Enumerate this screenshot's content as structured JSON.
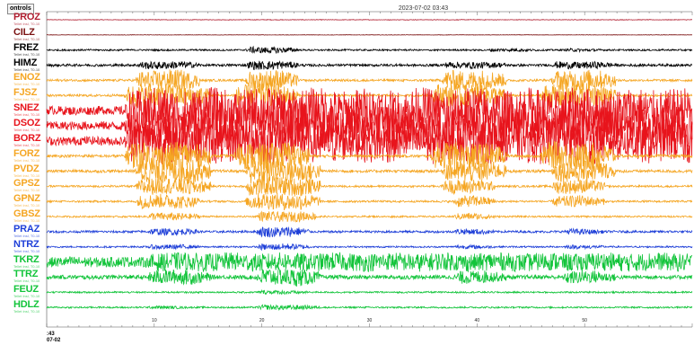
{
  "controls_label": "ontrols",
  "timestamp": "2023-07-02 03:43",
  "x_start_label": ":43",
  "x_start_date": "07-02",
  "colors": {
    "PROZ": "#b01c2e",
    "CILZ": "#7a1010",
    "FREZ": "#000000",
    "HIMZ": "#000000",
    "orange": "#f5a623",
    "red": "#e8141c",
    "blue": "#1e3fd8",
    "green": "#12c43a"
  },
  "chart_data": {
    "type": "line",
    "title": "2023-07-02 03:43",
    "x_ticks": [
      "10",
      "20",
      "30",
      "40",
      "50"
    ],
    "xlim": [
      1,
      60
    ],
    "stations": [
      {
        "name": "PROZ",
        "sub": "Tellet Insl, T0-10",
        "color": "#b01c2e",
        "amp": 0.8,
        "base": 0.4,
        "bursts": []
      },
      {
        "name": "CILZ",
        "sub": "Tellet Insl, T0-10",
        "color": "#7a1010",
        "amp": 0.5,
        "base": 0.5,
        "bursts": []
      },
      {
        "name": "FREZ",
        "sub": "Tellet Insl, T0-10",
        "color": "#000000",
        "amp": 2.5,
        "base": 0.4,
        "bursts": [
          [
            19,
            24,
            1.6
          ],
          [
            41,
            46,
            0.8
          ],
          [
            48,
            52,
            0.8
          ]
        ]
      },
      {
        "name": "HIMZ",
        "sub": "Tellet Insl, T0-10",
        "color": "#000000",
        "amp": 3.0,
        "base": 0.5,
        "bursts": [
          [
            9,
            15,
            1.6
          ],
          [
            19,
            24,
            1.8
          ],
          [
            37,
            43,
            1.4
          ],
          [
            47,
            53,
            1.5
          ]
        ]
      },
      {
        "name": "ENOZ",
        "sub": "Tellet Insl, T0-10",
        "color": "#f5a623",
        "amp": 4.0,
        "base": 0.35,
        "bursts": [
          [
            9,
            15,
            3.2
          ],
          [
            19,
            24,
            3.2
          ],
          [
            37,
            43,
            3.2
          ],
          [
            47,
            53,
            3.2
          ]
        ]
      },
      {
        "name": "FJSZ",
        "sub": "Tellet Insl, T0-10",
        "color": "#f5a623",
        "amp": 4.0,
        "base": 0.35,
        "bursts": [
          [
            8,
            16,
            3.6
          ],
          [
            18,
            24,
            3.6
          ],
          [
            36,
            43,
            3.6
          ],
          [
            46,
            53,
            3.6
          ]
        ]
      },
      {
        "name": "SNEZ",
        "sub": "Tellet Insl, T0-10",
        "color": "#e8141c",
        "amp": 9.0,
        "base": 0.6,
        "bursts": [
          [
            8,
            62,
            3.0
          ]
        ]
      },
      {
        "name": "DSOZ",
        "sub": "Tellet Insl, T0-10",
        "color": "#e8141c",
        "amp": 9.0,
        "base": 0.6,
        "bursts": [
          [
            8,
            62,
            3.0
          ]
        ]
      },
      {
        "name": "BORZ",
        "sub": "Tellet Insl, T0-10",
        "color": "#e8141c",
        "amp": 9.0,
        "base": 0.6,
        "bursts": [
          [
            8,
            62,
            3.0
          ]
        ]
      },
      {
        "name": "FORZ",
        "sub": "Tellet Insl, T0-10",
        "color": "#f5a623",
        "amp": 5.0,
        "base": 0.35,
        "bursts": [
          [
            8,
            16,
            3.4
          ],
          [
            18,
            25,
            3.4
          ],
          [
            36,
            43,
            3.4
          ],
          [
            46,
            53,
            3.4
          ]
        ]
      },
      {
        "name": "PVDZ",
        "sub": "Tellet Insl, T0-10",
        "color": "#f5a623",
        "amp": 5.0,
        "base": 0.35,
        "bursts": [
          [
            9,
            16,
            3.0
          ],
          [
            19,
            26,
            3.0
          ],
          [
            37,
            43,
            2.6
          ],
          [
            47,
            53,
            2.6
          ]
        ]
      },
      {
        "name": "GPSZ",
        "sub": "Tellet Insl, T0-10",
        "color": "#f5a623",
        "amp": 4.0,
        "base": 0.3,
        "bursts": [
          [
            9,
            16,
            2.6
          ],
          [
            19,
            26,
            3.0
          ],
          [
            37,
            42,
            2.2
          ],
          [
            47,
            52,
            2.2
          ]
        ]
      },
      {
        "name": "GPNZ",
        "sub": "Tellet Insl, T0-10",
        "color": "#f5a623",
        "amp": 4.0,
        "base": 0.3,
        "bursts": [
          [
            9,
            15,
            2.2
          ],
          [
            19,
            26,
            2.6
          ],
          [
            38,
            42,
            1.8
          ],
          [
            47,
            52,
            1.8
          ]
        ]
      },
      {
        "name": "GBSZ",
        "sub": "Tellet Insl, T0-10",
        "color": "#f5a623",
        "amp": 3.5,
        "base": 0.3,
        "bursts": [
          [
            10,
            15,
            1.4
          ],
          [
            20,
            26,
            1.8
          ],
          [
            38,
            42,
            1.2
          ]
        ]
      },
      {
        "name": "PRAZ",
        "sub": "Tellet Insl, T0-10",
        "color": "#1e3fd8",
        "amp": 3.0,
        "base": 0.45,
        "bursts": [
          [
            10,
            15,
            1.4
          ],
          [
            20,
            25,
            2.2
          ],
          [
            38,
            42,
            1.2
          ],
          [
            48,
            52,
            1.2
          ]
        ]
      },
      {
        "name": "NTRZ",
        "sub": "Tellet Insl, T0-10",
        "color": "#1e3fd8",
        "amp": 2.5,
        "base": 0.4,
        "bursts": [
          [
            10,
            15,
            1.2
          ],
          [
            20,
            25,
            1.6
          ],
          [
            38,
            42,
            1.0
          ],
          [
            48,
            52,
            1.0
          ]
        ]
      },
      {
        "name": "TKRZ",
        "sub": "Tellet Insl, T0-10",
        "color": "#12c43a",
        "amp": 7.0,
        "base": 0.9,
        "bursts": [
          [
            10,
            62,
            1.6
          ]
        ]
      },
      {
        "name": "TTRZ",
        "sub": "Tellet Insl, T0-10",
        "color": "#12c43a",
        "amp": 5.0,
        "base": 0.5,
        "bursts": [
          [
            10,
            16,
            1.8
          ],
          [
            20,
            26,
            2.2
          ],
          [
            38,
            43,
            1.6
          ],
          [
            48,
            53,
            1.6
          ]
        ]
      },
      {
        "name": "FEUZ",
        "sub": "Tellet Insl, T0-10",
        "color": "#12c43a",
        "amp": 2.5,
        "base": 0.4,
        "bursts": [
          [
            20,
            25,
            1.0
          ]
        ]
      },
      {
        "name": "HDLZ",
        "sub": "Tellet Insl, T0-10",
        "color": "#12c43a",
        "amp": 2.5,
        "base": 0.4,
        "bursts": [
          [
            10,
            14,
            0.8
          ],
          [
            20,
            26,
            1.2
          ]
        ]
      }
    ]
  }
}
